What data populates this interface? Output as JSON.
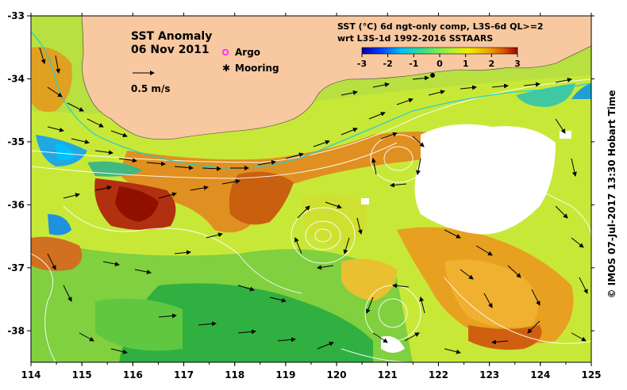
{
  "title": "SST Anomaly",
  "date": "06 Nov 2011",
  "vector_scale_label": "0.5 m/s",
  "legend": {
    "argo_label": "Argo",
    "mooring_label": "Mooring",
    "argo_color": "#ff33ff",
    "mooring_color": "#000000"
  },
  "colorbar": {
    "line1": "SST (°C) 6d ngt-only comp, L3S-6d QL>=2",
    "line2": "wrt L3S-1d 1992-2016 SSTAARS",
    "ticks": [
      "-3",
      "-2",
      "-1",
      "0",
      "1",
      "2",
      "3"
    ],
    "min": -3,
    "max": 3,
    "colors": [
      "#0000a0",
      "#0040ff",
      "#00c0ff",
      "#40e080",
      "#a0f040",
      "#f0f000",
      "#f0a000",
      "#d05000",
      "#a00000"
    ]
  },
  "axes": {
    "x_ticks": [
      "114",
      "115",
      "116",
      "117",
      "118",
      "119",
      "120",
      "121",
      "122",
      "123",
      "124",
      "125"
    ],
    "y_ticks": [
      "-33",
      "-34",
      "-35",
      "-36",
      "-37",
      "-38"
    ],
    "x_range": [
      114,
      125
    ],
    "y_range": [
      -38.5,
      -33
    ]
  },
  "credit": "© IMOS 07-Jul-2017 13:30 Hobart Time",
  "colors": {
    "land": "#f8c8a0",
    "no_data": "#ffffff"
  }
}
